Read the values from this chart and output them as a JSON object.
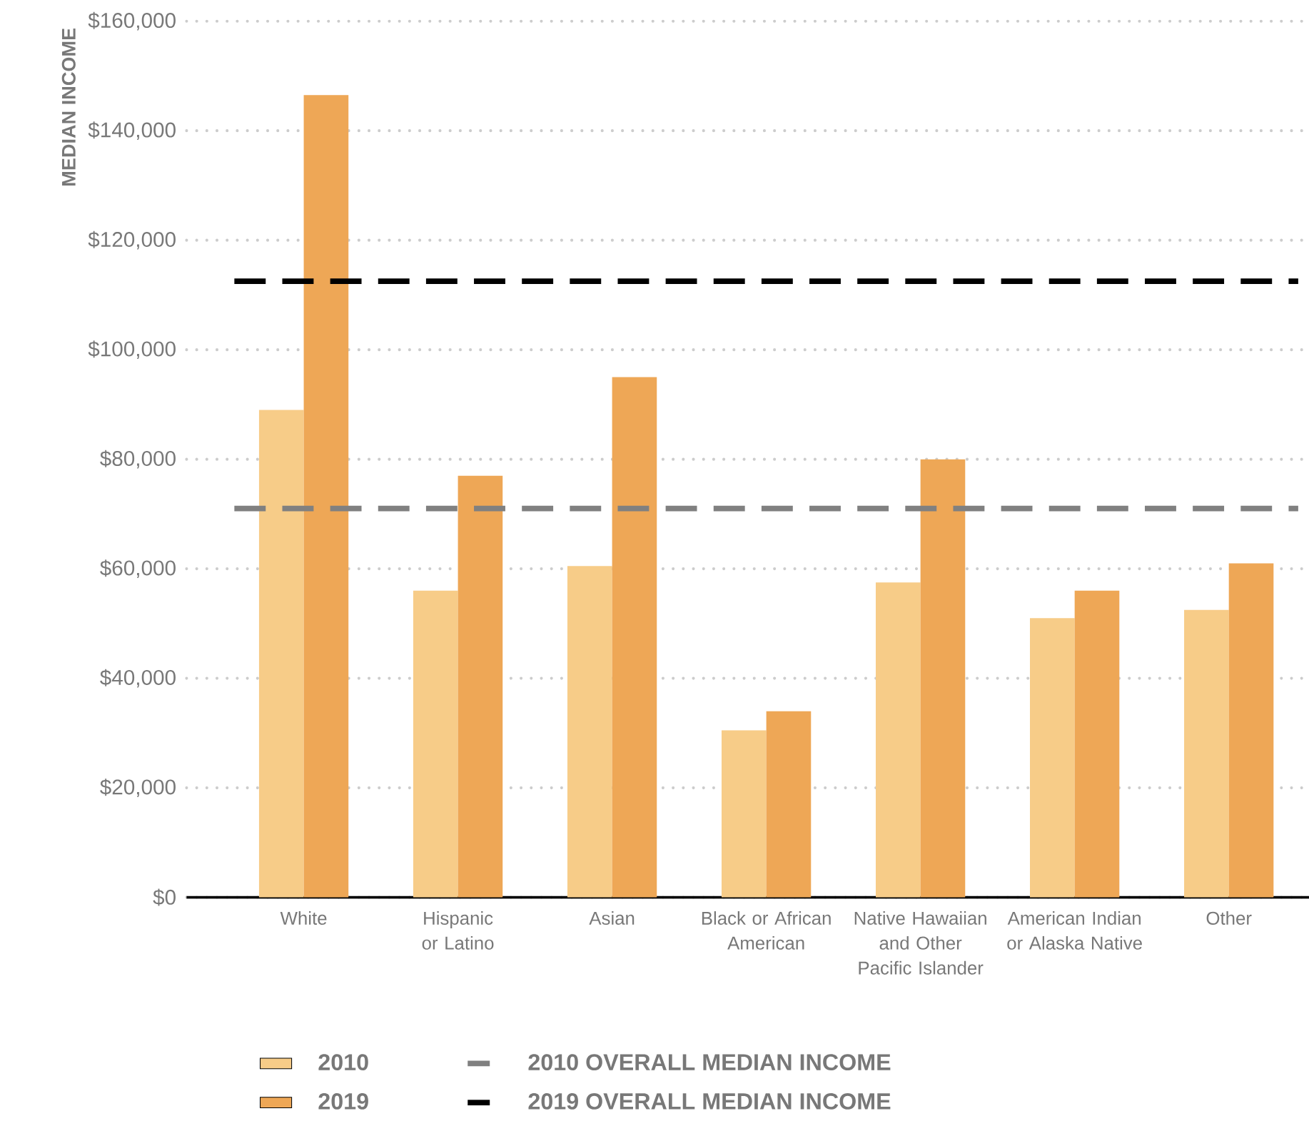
{
  "chart_data": {
    "type": "bar",
    "ylabel": "MEDIAN INCOME",
    "categories": [
      "White",
      "Hispanic or Latino",
      "Asian",
      "Black or African American",
      "Native Hawaiian and Other Pacific Islander",
      "American Indian or Alaska Native",
      "Other"
    ],
    "series": [
      {
        "name": "2010",
        "color": "#f7cc88",
        "values": [
          89000,
          56000,
          60500,
          30500,
          57500,
          51000,
          52500
        ]
      },
      {
        "name": "2019",
        "color": "#eea756",
        "values": [
          146500,
          77000,
          95000,
          34000,
          80000,
          56000,
          61000
        ]
      }
    ],
    "ylim": [
      0,
      160000
    ],
    "yticks": [
      {
        "value": 0,
        "label": "$0"
      },
      {
        "value": 20000,
        "label": "$20,000"
      },
      {
        "value": 40000,
        "label": "$40,000"
      },
      {
        "value": 60000,
        "label": "$60,000"
      },
      {
        "value": 80000,
        "label": "$80,000"
      },
      {
        "value": 100000,
        "label": "$100,000"
      },
      {
        "value": 120000,
        "label": "$120,000"
      },
      {
        "value": 140000,
        "label": "$140,000"
      },
      {
        "value": 160000,
        "label": "$160,000"
      }
    ],
    "ref_lines": [
      {
        "axis": "y",
        "value": 71000,
        "label": "2010 OVERALL MEDIAN INCOME",
        "color": "#808080",
        "line_style": "dashed"
      },
      {
        "axis": "y",
        "value": 112500,
        "label": "2019 OVERALL MEDIAN INCOME",
        "color": "#000000",
        "line_style": "dashed"
      }
    ],
    "grid": "y",
    "legend": "bottom"
  }
}
